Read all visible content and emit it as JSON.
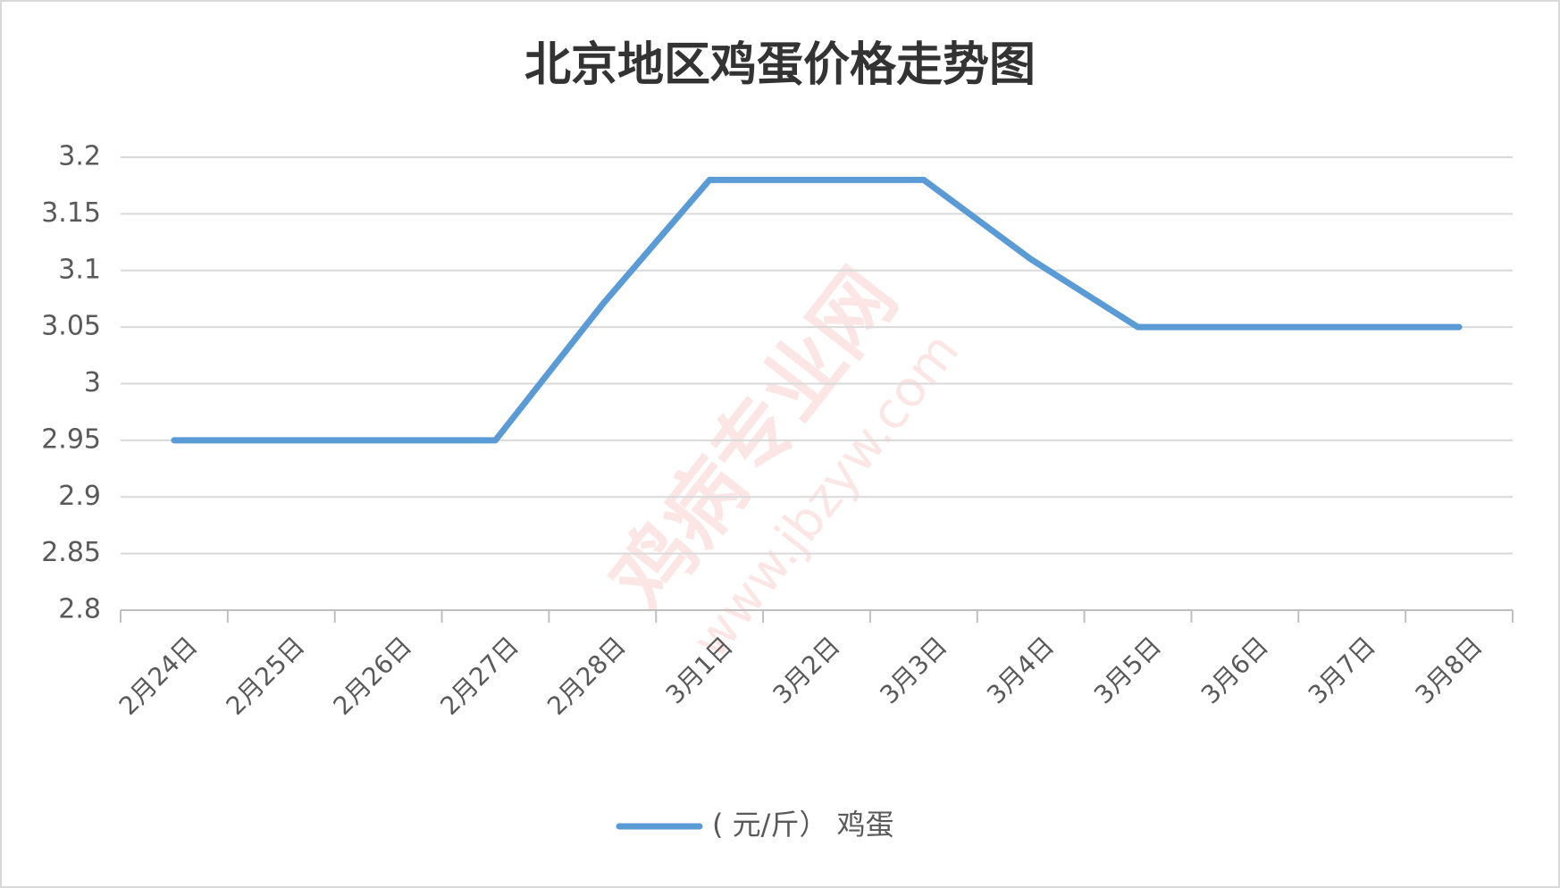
{
  "chart_data": {
    "type": "line",
    "title": "北京地区鸡蛋价格走势图",
    "categories": [
      "2月24日",
      "2月25日",
      "2月26日",
      "2月27日",
      "2月28日",
      "3月1日",
      "3月2日",
      "3月3日",
      "3月4日",
      "3月5日",
      "3月6日",
      "3月7日",
      "3月8日"
    ],
    "series": [
      {
        "name": "( 元/斤） 鸡蛋",
        "color": "#5b9bd5",
        "values": [
          2.95,
          2.95,
          2.95,
          2.95,
          3.07,
          3.18,
          3.18,
          3.18,
          3.11,
          3.05,
          3.05,
          3.05,
          3.05
        ]
      }
    ],
    "ylim": [
      2.8,
      3.2
    ],
    "yticks": [
      2.8,
      2.85,
      2.9,
      2.95,
      3,
      3.05,
      3.1,
      3.15,
      3.2
    ],
    "grid": true,
    "legend": "bottom",
    "watermark": "鸡病专业网",
    "watermark_url": "www.jbzyw.com"
  }
}
